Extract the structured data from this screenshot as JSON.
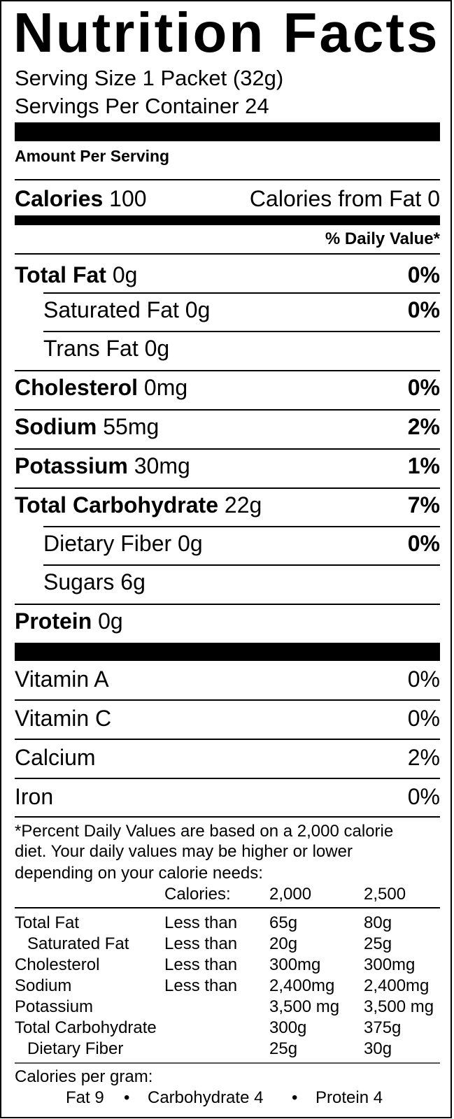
{
  "title": "Nutrition Facts",
  "serving_size": "Serving Size 1 Packet (32g)",
  "servings_per_container": "Servings Per Container 24",
  "amount_per_serving": "Amount Per Serving",
  "calories": {
    "label": "Calories",
    "value": "100",
    "from_fat": "Calories from Fat 0"
  },
  "daily_value_header": "% Daily Value*",
  "nutrients": [
    {
      "label": "Total Fat",
      "amount": "0g",
      "dv": "0%"
    },
    {
      "label": "Saturated Fat",
      "amount": "0g",
      "dv": "0%"
    },
    {
      "label": "Trans Fat",
      "amount": "0g",
      "dv": ""
    },
    {
      "label": "Cholesterol",
      "amount": "0mg",
      "dv": "0%"
    },
    {
      "label": "Sodium",
      "amount": "55mg",
      "dv": "2%"
    },
    {
      "label": "Potassium",
      "amount": "30mg",
      "dv": "1%"
    },
    {
      "label": "Total Carbohydrate",
      "amount": "22g",
      "dv": "7%"
    },
    {
      "label": "Dietary Fiber",
      "amount": "0g",
      "dv": "0%"
    },
    {
      "label": "Sugars",
      "amount": "6g",
      "dv": ""
    },
    {
      "label": "Protein",
      "amount": "0g",
      "dv": ""
    }
  ],
  "vitamins": [
    {
      "label": "Vitamin A",
      "dv": "0%"
    },
    {
      "label": "Vitamin C",
      "dv": "0%"
    },
    {
      "label": "Calcium",
      "dv": "2%"
    },
    {
      "label": "Iron",
      "dv": "0%"
    }
  ],
  "footnote": {
    "lines": [
      "*Percent Daily Values are based on a 2,000 calorie",
      "diet. Your daily values may be higher or lower",
      "depending on your calorie needs:"
    ],
    "table": {
      "header": [
        "Calories:",
        "2,000",
        "2,500"
      ],
      "rows": [
        [
          "Total Fat",
          "Less than",
          "65g",
          "80g"
        ],
        [
          "Saturated Fat",
          "Less than",
          "20g",
          "25g"
        ],
        [
          "Cholesterol",
          "Less than",
          "300mg",
          "300mg"
        ],
        [
          "Sodium",
          "Less than",
          "2,400mg",
          "2,400mg"
        ],
        [
          "Potassium",
          "",
          "3,500 mg",
          "3,500 mg"
        ],
        [
          "Total Carbohydrate",
          "",
          "300g",
          "375g"
        ],
        [
          "Dietary Fiber",
          "",
          "25g",
          "30g"
        ]
      ]
    },
    "calories_per_gram_label": "Calories per gram:",
    "per_gram": [
      "Fat 9",
      "Carbohydrate 4",
      "Protein 4"
    ],
    "bullet": "•"
  }
}
